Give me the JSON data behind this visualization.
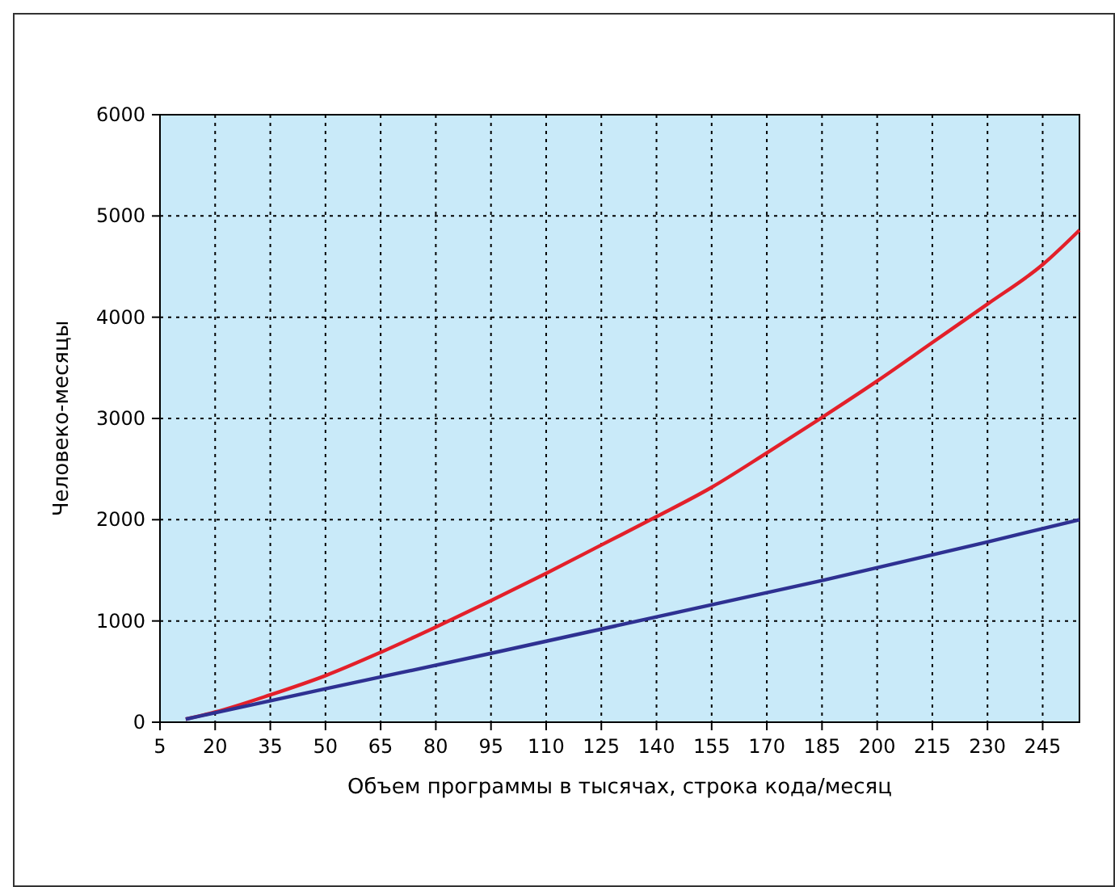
{
  "chart_data": {
    "type": "line",
    "xlabel": "Объем программы в тысячах, строка кода/месяц",
    "ylabel": "Человеко-месяцы",
    "xlim": [
      5,
      255
    ],
    "xticks": [
      5,
      20,
      35,
      50,
      65,
      80,
      95,
      110,
      125,
      140,
      155,
      170,
      185,
      200,
      215,
      230,
      245
    ],
    "ylim": [
      0,
      6000
    ],
    "yticks": [
      0,
      1000,
      2000,
      3000,
      4000,
      5000,
      6000
    ],
    "grid": true,
    "line_style": "solid",
    "marker": "none",
    "series": [
      {
        "color": "#e3202a",
        "x": [
          12,
          20,
          35,
          50,
          65,
          80,
          95,
          110,
          125,
          140,
          155,
          170,
          185,
          200,
          215,
          230,
          245,
          255
        ],
        "values": [
          30,
          100,
          270,
          460,
          690,
          940,
          1200,
          1470,
          1750,
          2030,
          2320,
          2660,
          3010,
          3370,
          3750,
          4130,
          4520,
          4860
        ]
      },
      {
        "color": "#2e3192",
        "x": [
          12,
          50,
          95,
          140,
          185,
          230,
          255
        ],
        "values": [
          30,
          330,
          680,
          1040,
          1400,
          1780,
          2000
        ]
      }
    ]
  }
}
